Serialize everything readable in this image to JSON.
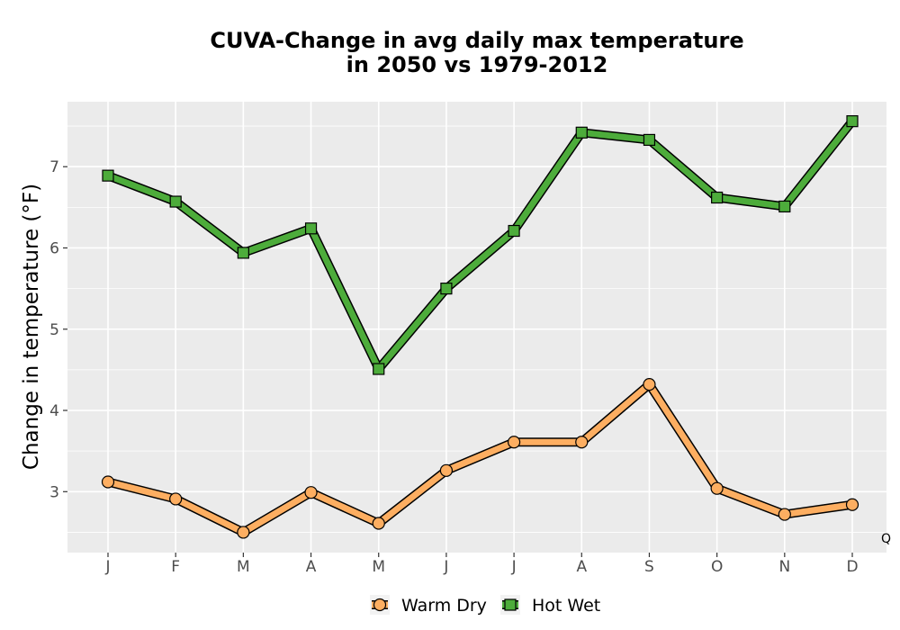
{
  "chart_data": {
    "type": "line",
    "title_line1": "CUVA-Change in avg daily max temperature",
    "title_line2": "in 2050 vs 1979-2012",
    "xlabel": "",
    "ylabel": "Change in temperature (°F)",
    "categories": [
      "J",
      "F",
      "M",
      "A",
      "M",
      "J",
      "J",
      "A",
      "S",
      "O",
      "N",
      "D"
    ],
    "ylim": [
      2.25,
      7.8
    ],
    "yticks": [
      3,
      4,
      5,
      6,
      7
    ],
    "grid": true,
    "legend_position": "bottom",
    "caption": "Q",
    "series": [
      {
        "name": "Warm Dry",
        "marker": "circle",
        "color": "#FDAE61",
        "values": [
          3.12,
          2.91,
          2.5,
          2.99,
          2.61,
          3.26,
          3.61,
          3.61,
          4.32,
          3.04,
          2.72,
          2.84
        ]
      },
      {
        "name": "Hot Wet",
        "marker": "square",
        "color": "#4DAC3B",
        "values": [
          6.89,
          6.57,
          5.94,
          6.24,
          4.51,
          5.5,
          6.21,
          7.42,
          7.33,
          6.62,
          6.51,
          7.56
        ]
      }
    ]
  }
}
